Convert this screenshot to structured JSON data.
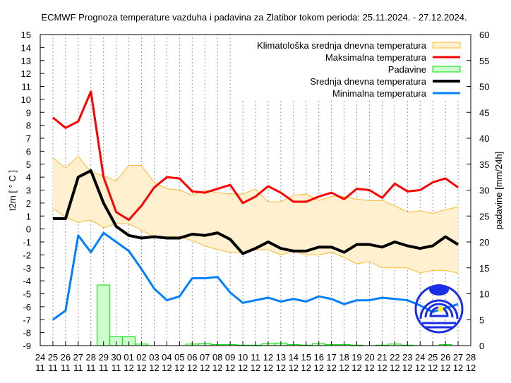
{
  "chart_data": {
    "type": "line",
    "title": "ECMWF Prognoza temperature vazduha i padavina za Zlatibor tokom perioda: 25.11.2024. - 27.12.2024.",
    "ylabel": "t2m [ ° C ]",
    "y2label": "padavine [mm/24h]",
    "ylim": [
      -9,
      15
    ],
    "y2lim": [
      0,
      60
    ],
    "grid": "vertical dashed",
    "legend_position": "top-right",
    "x_ticks": [
      [
        "24",
        "11"
      ],
      [
        "25",
        "11"
      ],
      [
        "26",
        "11"
      ],
      [
        "27",
        "11"
      ],
      [
        "28",
        "11"
      ],
      [
        "29",
        "11"
      ],
      [
        "30",
        "11"
      ],
      [
        "01",
        "12"
      ],
      [
        "02",
        "12"
      ],
      [
        "03",
        "12"
      ],
      [
        "04",
        "12"
      ],
      [
        "05",
        "12"
      ],
      [
        "06",
        "12"
      ],
      [
        "07",
        "12"
      ],
      [
        "08",
        "12"
      ],
      [
        "09",
        "12"
      ],
      [
        "10",
        "12"
      ],
      [
        "11",
        "12"
      ],
      [
        "12",
        "12"
      ],
      [
        "13",
        "12"
      ],
      [
        "14",
        "12"
      ],
      [
        "15",
        "12"
      ],
      [
        "16",
        "12"
      ],
      [
        "17",
        "12"
      ],
      [
        "18",
        "12"
      ],
      [
        "19",
        "12"
      ],
      [
        "20",
        "12"
      ],
      [
        "21",
        "12"
      ],
      [
        "22",
        "12"
      ],
      [
        "23",
        "12"
      ],
      [
        "24",
        "12"
      ],
      [
        "25",
        "12"
      ],
      [
        "26",
        "12"
      ],
      [
        "27",
        "12"
      ],
      [
        "28",
        "12"
      ]
    ],
    "y_ticks": [
      -9,
      -8,
      -7,
      -6,
      -5,
      -4,
      -3,
      -2,
      -1,
      0,
      1,
      2,
      3,
      4,
      5,
      6,
      7,
      8,
      9,
      10,
      11,
      12,
      13,
      14,
      15
    ],
    "y2_ticks": [
      0,
      5,
      10,
      15,
      20,
      25,
      30,
      35,
      40,
      45,
      50,
      55,
      60
    ],
    "dates": [
      "25.11",
      "26.11",
      "27.11",
      "28.11",
      "29.11",
      "30.11",
      "01.12",
      "02.12",
      "03.12",
      "04.12",
      "05.12",
      "06.12",
      "07.12",
      "08.12",
      "09.12",
      "10.12",
      "11.12",
      "12.12",
      "13.12",
      "14.12",
      "15.12",
      "16.12",
      "17.12",
      "18.12",
      "19.12",
      "20.12",
      "21.12",
      "22.12",
      "23.12",
      "24.12",
      "25.12",
      "26.12",
      "27.12"
    ],
    "series": [
      {
        "name": "Klimatološka srednja dnevna temperatura",
        "kind": "band",
        "color": "#ffb732",
        "fill": "#fff0d0",
        "upper": [
          5.5,
          4.7,
          5.6,
          4.4,
          4.1,
          3.7,
          4.9,
          4.9,
          3.6,
          3.1,
          3.0,
          2.6,
          3.0,
          2.8,
          2.7,
          2.7,
          3.1,
          2.1,
          2.1,
          2.6,
          2.7,
          2.2,
          2.5,
          2.5,
          2.3,
          2.2,
          2.2,
          1.8,
          1.3,
          1.4,
          1.2,
          1.5,
          1.7
        ],
        "lower": [
          1.6,
          0.9,
          0.5,
          0.7,
          0.1,
          0.4,
          0.4,
          -0.1,
          -0.6,
          -0.6,
          -0.6,
          -0.9,
          -1.3,
          -1.6,
          -1.8,
          -1.8,
          -1.6,
          -1.6,
          -2.0,
          -1.7,
          -2.0,
          -2.0,
          -1.8,
          -2.2,
          -2.7,
          -2.5,
          -3.0,
          -3.0,
          -3.0,
          -3.4,
          -3.2,
          -3.2,
          -3.4
        ]
      },
      {
        "name": "Maksimalna temperatura",
        "kind": "line",
        "color": "#ff0000",
        "values": [
          8.6,
          7.8,
          8.3,
          10.6,
          4.0,
          1.3,
          0.7,
          1.8,
          3.2,
          4.0,
          3.9,
          2.9,
          2.8,
          3.1,
          3.4,
          2.0,
          2.5,
          3.3,
          2.8,
          2.1,
          2.1,
          2.5,
          2.8,
          2.3,
          3.1,
          3.0,
          2.4,
          3.5,
          2.9,
          3.0,
          3.6,
          3.9,
          3.2
        ]
      },
      {
        "name": "Padavine",
        "kind": "bar",
        "axis": "right",
        "color": "#00e000",
        "fill": "#ccffcc",
        "values": [
          0,
          0,
          0,
          0,
          11.7,
          1.7,
          1.7,
          0.3,
          0,
          0,
          0,
          0.3,
          0.4,
          0.2,
          0.2,
          0.1,
          0.1,
          0.4,
          0.5,
          0.2,
          0.1,
          0.4,
          0.2,
          0.2,
          0.1,
          0,
          0.1,
          0.3,
          0.1,
          0,
          0,
          0.2,
          0
        ]
      },
      {
        "name": "Srednja dnevna temperatura",
        "kind": "line",
        "color": "#000000",
        "values": [
          0.8,
          0.8,
          4.0,
          4.5,
          2.0,
          0.2,
          -0.5,
          -0.7,
          -0.6,
          -0.7,
          -0.7,
          -0.4,
          -0.5,
          -0.3,
          -0.8,
          -1.9,
          -1.5,
          -1.0,
          -1.5,
          -1.7,
          -1.7,
          -1.4,
          -1.4,
          -1.8,
          -1.2,
          -1.2,
          -1.4,
          -1.0,
          -1.3,
          -1.5,
          -1.3,
          -0.6,
          -1.2
        ]
      },
      {
        "name": "Minimalna temperatura",
        "kind": "line",
        "color": "#0080ff",
        "values": [
          -7.0,
          -6.3,
          -0.5,
          -1.8,
          -0.3,
          -1.0,
          -1.7,
          -3.1,
          -4.6,
          -5.5,
          -5.2,
          -3.8,
          -3.8,
          -3.7,
          -4.9,
          -5.7,
          -5.5,
          -5.3,
          -5.6,
          -5.4,
          -5.6,
          -5.2,
          -5.4,
          -5.8,
          -5.5,
          -5.5,
          -5.3,
          -5.4,
          -5.5,
          -5.9,
          -6.4,
          -6.1,
          -5.8
        ]
      }
    ]
  },
  "logo": {
    "text": "RHMZ SRBIJE",
    "color": "#1a2ee6"
  }
}
